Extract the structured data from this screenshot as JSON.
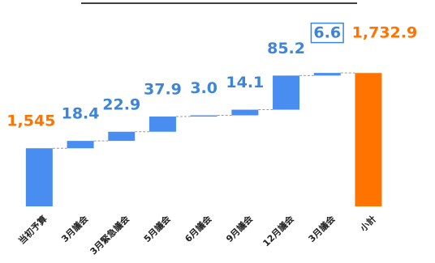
{
  "chart_data": {
    "type": "waterfall",
    "categories": [
      "当初予算",
      "3月議会",
      "3月緊急議会",
      "5月議会",
      "6月議会",
      "9月議会",
      "12月議会",
      "3月議会",
      "小計"
    ],
    "measure": [
      "absolute",
      "relative",
      "relative",
      "relative",
      "relative",
      "relative",
      "relative",
      "relative",
      "total"
    ],
    "values": [
      1545,
      18.4,
      22.9,
      37.9,
      3.0,
      14.1,
      85.2,
      6.6,
      1732.9
    ],
    "value_labels": [
      "1,545",
      "18.4",
      "22.9",
      "37.9",
      "3.0",
      "14.1",
      "85.2",
      "6.6",
      "1,732.9"
    ],
    "increase_color": "#4a8df0",
    "total_color": "#ff7300",
    "ylim": [
      1400,
      1760
    ]
  }
}
